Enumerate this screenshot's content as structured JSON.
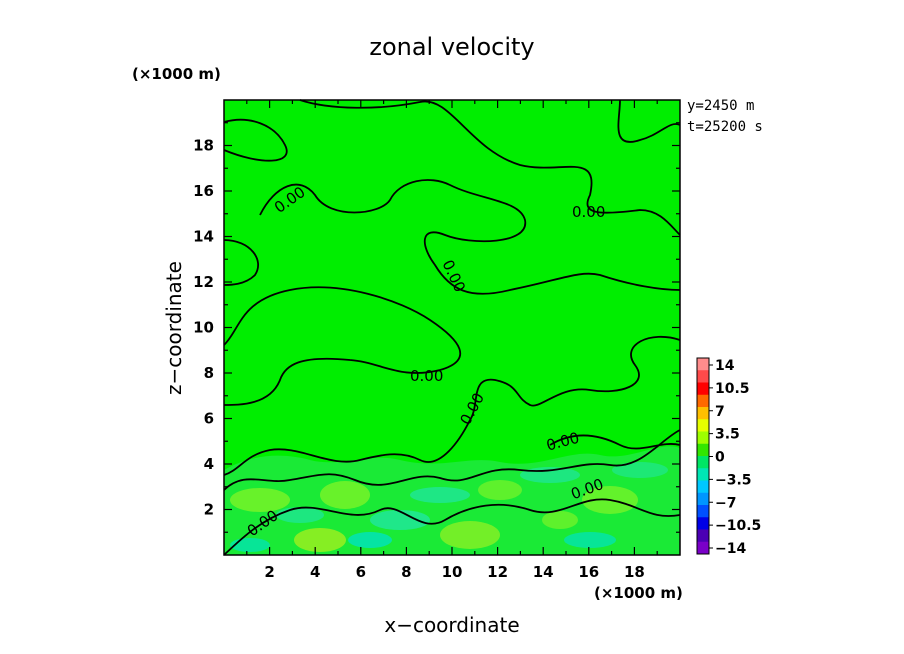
{
  "chart_data": {
    "type": "heatmap",
    "title": "zonal velocity",
    "xlabel": "x−coordinate",
    "ylabel": "z−coordinate",
    "x_unit": "(×1000 m)",
    "y_unit": "(×1000 m)",
    "annotations": [
      "y=2450 m",
      "t=25200 s"
    ],
    "xlim": [
      0,
      20
    ],
    "ylim": [
      0,
      20
    ],
    "x_ticks": [
      "2",
      "4",
      "6",
      "8",
      "10",
      "12",
      "14",
      "16",
      "18"
    ],
    "y_ticks": [
      "2",
      "4",
      "6",
      "8",
      "10",
      "12",
      "14",
      "16",
      "18"
    ],
    "contour_label": "0.00",
    "colorbar": {
      "labels": [
        "14",
        "10.5",
        "7",
        "3.5",
        "0",
        "−3.5",
        "−7",
        "−10.5",
        "−14"
      ],
      "levels": [
        14,
        10.5,
        7,
        3.5,
        0,
        -3.5,
        -7,
        -10.5,
        -14
      ],
      "colors": [
        "#ff8c8c",
        "#ff4a4a",
        "#ff0000",
        "#ff6a00",
        "#ffc000",
        "#e6ff00",
        "#9eff00",
        "#32e600",
        "#00e664",
        "#00e6b4",
        "#00c8ff",
        "#0096ff",
        "#0050ff",
        "#0000e6",
        "#4b00b4",
        "#7a00c8"
      ]
    },
    "background_color": "#00ee00",
    "lower_region_colors": [
      "#44f23c",
      "#7cf428",
      "#20e696",
      "#00e2b0"
    ],
    "grid": false
  }
}
